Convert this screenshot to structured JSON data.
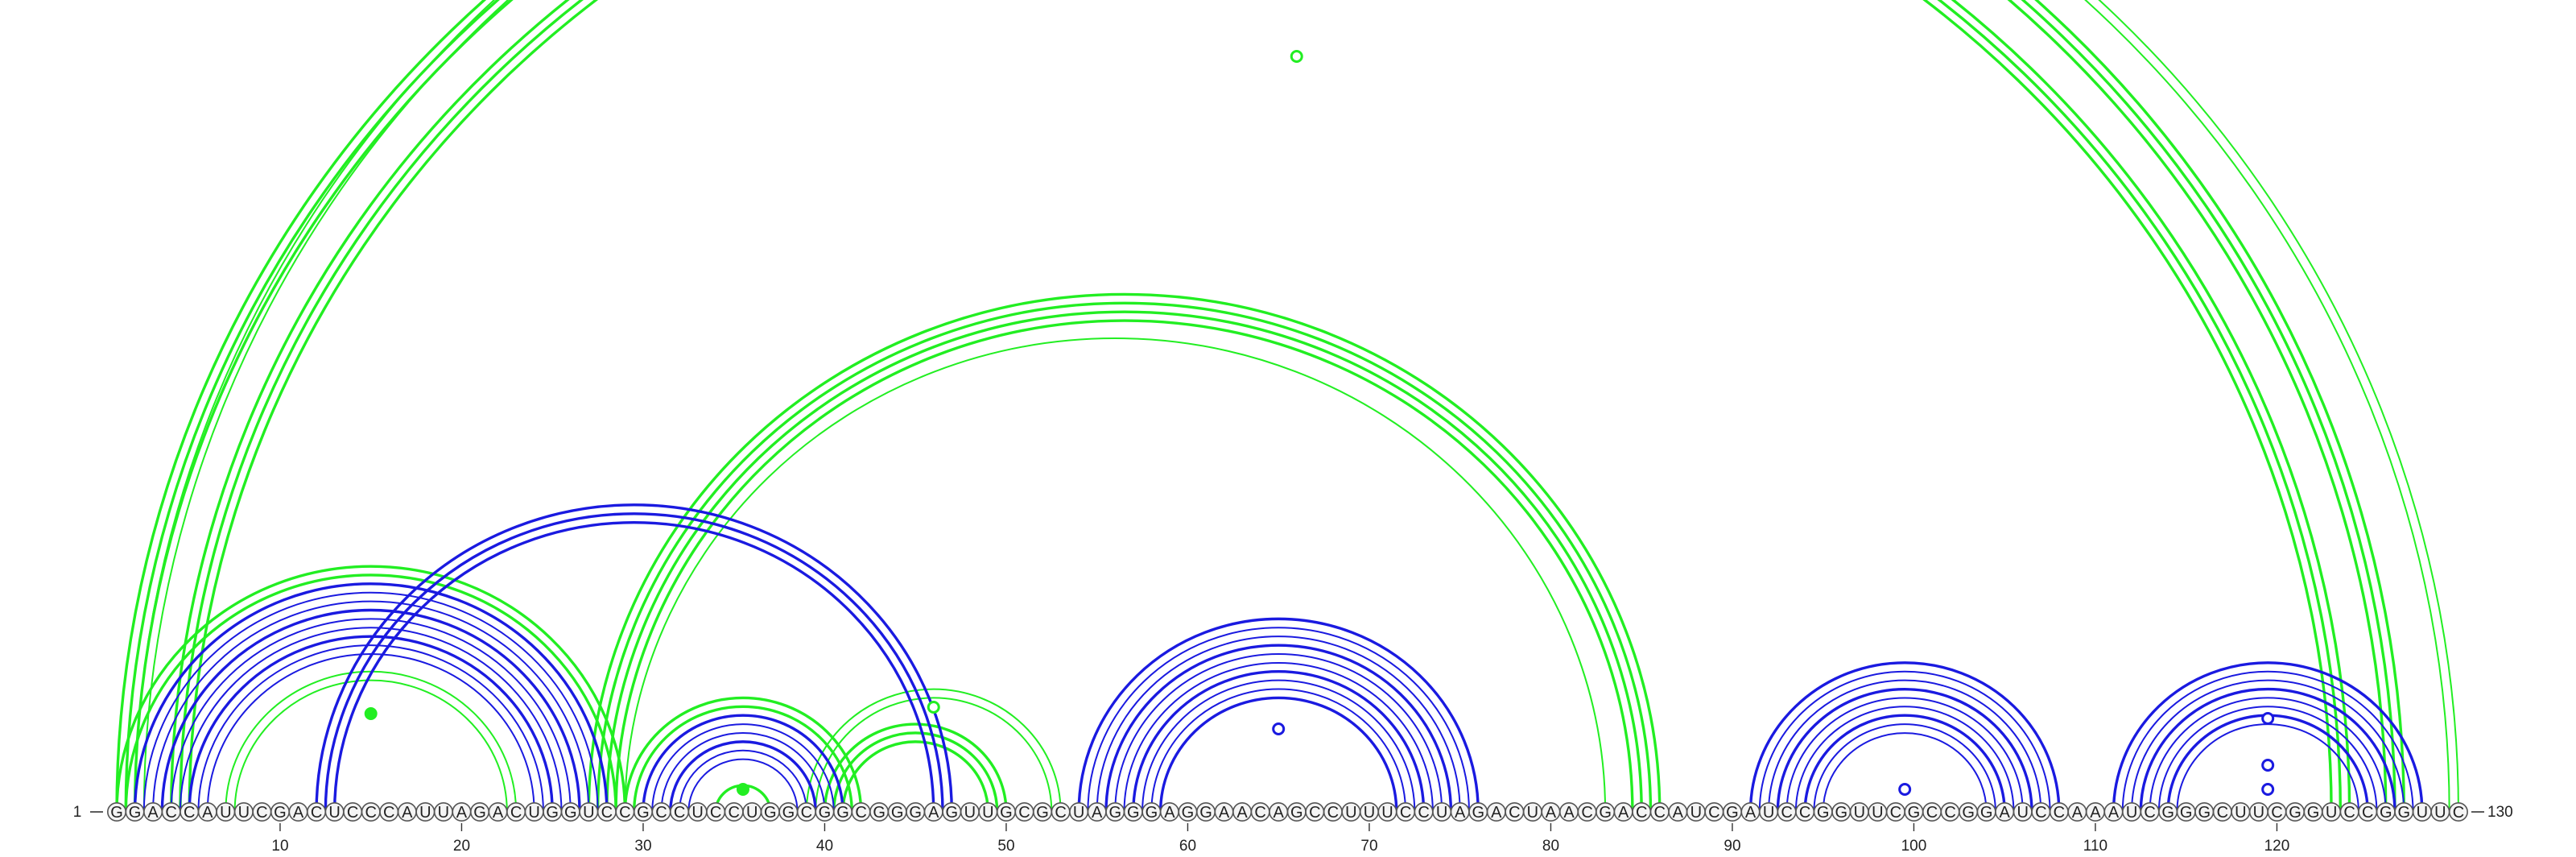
{
  "sequence": "GGACCAUUCGACUCCCAUUAGACUGGUCCGCCUCCUGGCGGCGGGAGUUGCGCUAGGGAGGAACAGCCUUUCCUAGACUAACGACCAUCGAUCCGGUUCGCCGGAUCCAAAUCGGGCUUCGGUCCGGUUC",
  "start_label": "1",
  "end_label": "130",
  "colors": {
    "green": "#22ee22",
    "blue": "#1a1ae0"
  },
  "tick_positions": [
    10,
    20,
    30,
    40,
    50,
    60,
    70,
    80,
    90,
    100,
    110,
    120
  ],
  "arc_groups": [
    {
      "color": "green",
      "i": 1,
      "j": 127,
      "count": 3,
      "weight": "heavy"
    },
    {
      "color": "green",
      "i": 4,
      "j": 124,
      "count": 3,
      "weight": "heavy"
    },
    {
      "color": "green",
      "i": 2,
      "j": 130,
      "count": 2,
      "weight": "thin"
    },
    {
      "color": "green",
      "i": 27,
      "j": 86,
      "count": 4,
      "weight": "heavy"
    },
    {
      "color": "green",
      "i": 29,
      "j": 83,
      "count": 1,
      "weight": "thin"
    },
    {
      "color": "green",
      "i": 1,
      "j": 29,
      "count": 2,
      "weight": "heavy"
    },
    {
      "color": "green",
      "i": 7,
      "j": 23,
      "count": 2,
      "weight": "thin"
    },
    {
      "color": "green",
      "i": 39,
      "j": 53,
      "count": 2,
      "weight": "thin"
    },
    {
      "color": "green",
      "i": 40,
      "j": 50,
      "count": 3,
      "weight": "heavy"
    },
    {
      "color": "green",
      "i": 29,
      "j": 42,
      "count": 2,
      "weight": "heavy"
    },
    {
      "color": "green",
      "i": 34,
      "j": 37,
      "count": 1,
      "weight": "heavy"
    },
    {
      "color": "blue",
      "i": 2,
      "j": 28,
      "count": 9,
      "weight": "mixed"
    },
    {
      "color": "blue",
      "i": 12,
      "j": 47,
      "count": 3,
      "weight": "heavy"
    },
    {
      "color": "blue",
      "i": 30,
      "j": 41,
      "count": 6,
      "weight": "mixed"
    },
    {
      "color": "blue",
      "i": 54,
      "j": 76,
      "count": 10,
      "weight": "mixed"
    },
    {
      "color": "blue",
      "i": 91,
      "j": 108,
      "count": 9,
      "weight": "mixed"
    },
    {
      "color": "blue",
      "i": 111,
      "j": 128,
      "count": 8,
      "weight": "mixed"
    }
  ],
  "markers": [
    {
      "color": "green",
      "pos": 66,
      "filled": false,
      "on": "green-outer"
    },
    {
      "color": "green",
      "pos": 46,
      "filled": false,
      "on": "green-39-53"
    },
    {
      "color": "green",
      "pos": 15,
      "filled": true,
      "on": "green-7-23"
    },
    {
      "color": "green",
      "pos": 35.5,
      "filled": true,
      "on": "green-34-37"
    },
    {
      "color": "blue",
      "pos": 65,
      "filled": false,
      "on": "blue-54-76"
    },
    {
      "color": "blue",
      "pos": 99.5,
      "filled": false,
      "on": "blue-91-108"
    },
    {
      "color": "blue",
      "pos": 119.5,
      "filled": false,
      "on": "blue-111-128-a"
    },
    {
      "color": "blue",
      "pos": 119.5,
      "filled": false,
      "on": "blue-111-128-b"
    },
    {
      "color": "blue",
      "pos": 119.5,
      "filled": false,
      "on": "blue-111-128-c"
    }
  ]
}
